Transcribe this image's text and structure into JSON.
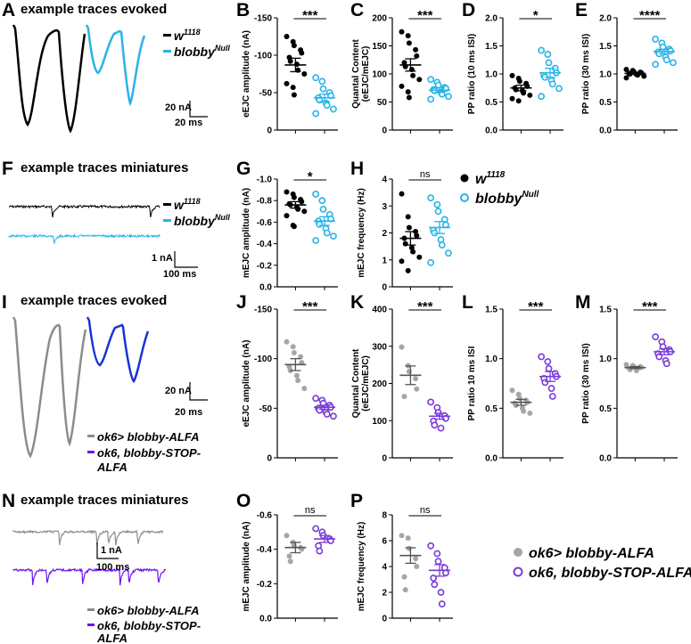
{
  "colors": {
    "ctrl1": "#000000",
    "mut1": "#29b3e6",
    "ctrl2": "#8c8c8c",
    "mut2": "#7a3bd9",
    "trace2": "#1c32d6",
    "mini2": "#6b14f0"
  },
  "panels": {
    "A": {
      "label": "A",
      "title": "example traces evoked",
      "scale_y": "20 nA",
      "scale_x": "20 ms",
      "legend": [
        {
          "base": "w",
          "sup": "1118"
        },
        {
          "base": "blobby",
          "sup": "Null"
        }
      ]
    },
    "F": {
      "label": "F",
      "title": "example traces miniatures",
      "scale_y": "1 nA",
      "scale_x": "100 ms",
      "legend": [
        {
          "base": "w",
          "sup": "1118"
        },
        {
          "base": "blobby",
          "sup": "Null"
        }
      ]
    },
    "I": {
      "label": "I",
      "title": "example traces evoked",
      "scale_y": "20 nA",
      "scale_x": "20 ms",
      "legend": [
        "ok6> blobby-ALFA",
        "ok6, blobby-STOP-",
        "ALFA"
      ]
    },
    "N": {
      "label": "N",
      "title": "example traces miniatures",
      "scale_y": "1 nA",
      "scale_x": "100 ms",
      "legend": [
        "ok6> blobby-ALFA",
        "ok6, blobby-STOP-",
        "ALFA"
      ]
    }
  },
  "legend_row1": [
    {
      "base": "w",
      "sup": "1118"
    },
    {
      "base": "blobby",
      "sup": "Null"
    }
  ],
  "legend_row4": [
    "ok6> blobby-ALFA",
    "ok6, blobby-STOP-ALFA"
  ],
  "chart_data": [
    {
      "id": "B",
      "type": "scatter",
      "ylabel": "eEJC amplitude (nA)",
      "ylim": [
        0,
        -150
      ],
      "yticks": [
        "0",
        "-50",
        "-100",
        "-150"
      ],
      "sig": "***",
      "series": [
        {
          "name": "w1118",
          "mean": -87,
          "sem": 9,
          "values": [
            -125,
            -118,
            -113,
            -107,
            -103,
            -97,
            -92,
            -88,
            -80,
            -75,
            -62,
            -57,
            -47
          ]
        },
        {
          "name": "blobbyNull",
          "mean": -43,
          "sem": 5,
          "values": [
            -70,
            -65,
            -55,
            -50,
            -46,
            -43,
            -40,
            -36,
            -33,
            -28,
            -22
          ]
        }
      ]
    },
    {
      "id": "C",
      "type": "scatter",
      "ylabel": "Quantal Content (eEJC/mEJC)",
      "ylim": [
        0,
        200
      ],
      "yticks": [
        "0",
        "50",
        "100",
        "150",
        "200"
      ],
      "sig": "***",
      "series": [
        {
          "name": "w1118",
          "mean": 116,
          "sem": 11,
          "values": [
            175,
            168,
            155,
            143,
            132,
            120,
            113,
            108,
            97,
            90,
            78,
            68,
            58
          ]
        },
        {
          "name": "blobbyNull",
          "mean": 71,
          "sem": 4,
          "values": [
            90,
            85,
            80,
            76,
            74,
            72,
            70,
            67,
            64,
            60,
            55
          ]
        }
      ]
    },
    {
      "id": "D",
      "type": "scatter",
      "ylabel": "PP ratio (10 ms ISI)",
      "ylim": [
        0,
        2.0
      ],
      "yticks": [
        "0.0",
        "0.5",
        "1.0",
        "1.5",
        "2.0"
      ],
      "sig": "*",
      "series": [
        {
          "name": "w1118",
          "mean": 0.75,
          "sem": 0.05,
          "values": [
            0.97,
            0.92,
            0.87,
            0.83,
            0.78,
            0.75,
            0.72,
            0.7,
            0.66,
            0.62,
            0.56,
            0.52
          ]
        },
        {
          "name": "blobbyNull",
          "mean": 1.02,
          "sem": 0.08,
          "values": [
            1.42,
            1.35,
            1.2,
            1.1,
            1.02,
            0.97,
            0.94,
            0.88,
            0.82,
            0.74,
            0.6
          ]
        }
      ]
    },
    {
      "id": "E",
      "type": "scatter",
      "ylabel": "PP ratio (30 ms ISI)",
      "ylim": [
        0,
        2.0
      ],
      "yticks": [
        "0.0",
        "0.5",
        "1.0",
        "1.5",
        "2.0"
      ],
      "sig": "****",
      "series": [
        {
          "name": "w1118",
          "mean": 1.01,
          "sem": 0.02,
          "values": [
            1.08,
            1.06,
            1.04,
            1.03,
            1.02,
            1.01,
            1.0,
            0.99,
            0.98,
            0.96,
            0.93
          ]
        },
        {
          "name": "blobbyNull",
          "mean": 1.4,
          "sem": 0.04,
          "values": [
            1.62,
            1.55,
            1.48,
            1.44,
            1.41,
            1.39,
            1.36,
            1.3,
            1.25,
            1.2,
            1.17
          ]
        }
      ]
    },
    {
      "id": "G",
      "type": "scatter",
      "ylabel": "mEJC amplitude (nA)",
      "ylim": [
        0,
        -1.0
      ],
      "yticks": [
        "0.0",
        "-0.2",
        "-0.4",
        "-0.6",
        "-0.8",
        "-1.0"
      ],
      "sig": "*",
      "series": [
        {
          "name": "w1118",
          "mean": -0.76,
          "sem": 0.03,
          "values": [
            -0.88,
            -0.86,
            -0.83,
            -0.81,
            -0.79,
            -0.77,
            -0.76,
            -0.74,
            -0.72,
            -0.7,
            -0.66,
            -0.57,
            -0.56
          ]
        },
        {
          "name": "blobbyNull",
          "mean": -0.61,
          "sem": 0.04,
          "values": [
            -0.86,
            -0.8,
            -0.72,
            -0.67,
            -0.63,
            -0.61,
            -0.58,
            -0.54,
            -0.5,
            -0.47,
            -0.43
          ]
        }
      ]
    },
    {
      "id": "H",
      "type": "scatter",
      "ylabel": "mEJC frequency (Hz)",
      "ylim": [
        0,
        4
      ],
      "yticks": [
        "0",
        "1",
        "2",
        "3",
        "4"
      ],
      "sig": "ns",
      "series": [
        {
          "name": "w1118",
          "mean": 1.8,
          "sem": 0.25,
          "values": [
            3.45,
            2.6,
            2.2,
            2.05,
            1.9,
            1.8,
            1.6,
            1.45,
            1.3,
            1.1,
            0.95,
            0.6
          ]
        },
        {
          "name": "blobbyNull",
          "mean": 2.2,
          "sem": 0.22,
          "values": [
            3.3,
            3.05,
            2.8,
            2.5,
            2.3,
            2.1,
            2.0,
            1.75,
            1.55,
            1.25,
            0.9
          ]
        }
      ]
    },
    {
      "id": "J",
      "type": "scatter",
      "ylabel": "eEJC amplitude (nA)",
      "ylim": [
        0,
        -150
      ],
      "yticks": [
        "0",
        "-50",
        "-100",
        "-150"
      ],
      "sig": "***",
      "series": [
        {
          "name": "ok6> blobby-ALFA",
          "mean": -94,
          "sem": 6,
          "values": [
            -117,
            -112,
            -106,
            -102,
            -96,
            -92,
            -88,
            -83,
            -78,
            -70
          ]
        },
        {
          "name": "ok6, blobby-STOP-ALFA",
          "mean": -51,
          "sem": 2,
          "values": [
            -60,
            -58,
            -55,
            -53,
            -51,
            -50,
            -48,
            -46,
            -44,
            -42
          ]
        }
      ]
    },
    {
      "id": "K",
      "type": "scatter",
      "ylabel": "Quantal Content (eEJC/mEJC)",
      "ylim": [
        0,
        400
      ],
      "yticks": [
        "0",
        "100",
        "200",
        "300",
        "400"
      ],
      "sig": "***",
      "series": [
        {
          "name": "ok6> blobby-ALFA",
          "mean": 222,
          "sem": 25,
          "values": [
            298,
            248,
            232,
            213,
            185,
            165
          ]
        },
        {
          "name": "ok6, blobby-STOP-ALFA",
          "mean": 112,
          "sem": 8,
          "values": [
            150,
            135,
            122,
            113,
            106,
            99,
            88,
            80
          ]
        }
      ]
    },
    {
      "id": "L",
      "type": "scatter",
      "ylabel": "PP ratio 10 ms ISI",
      "ylim": [
        0,
        1.5
      ],
      "yticks": [
        "0.0",
        "0.5",
        "1.0",
        "1.5"
      ],
      "sig": "***",
      "series": [
        {
          "name": "ok6> blobby-ALFA",
          "mean": 0.56,
          "sem": 0.03,
          "values": [
            0.68,
            0.64,
            0.6,
            0.58,
            0.56,
            0.55,
            0.53,
            0.5,
            0.47,
            0.45
          ]
        },
        {
          "name": "ok6, blobby-STOP-ALFA",
          "mean": 0.82,
          "sem": 0.05,
          "values": [
            1.02,
            0.97,
            0.9,
            0.85,
            0.82,
            0.8,
            0.76,
            0.7,
            0.62
          ]
        }
      ]
    },
    {
      "id": "M",
      "type": "scatter",
      "ylabel": "PP ratio (30 ms ISI)",
      "ylim": [
        0,
        1.5
      ],
      "yticks": [
        "0.0",
        "0.5",
        "1.0",
        "1.5"
      ],
      "sig": "***",
      "series": [
        {
          "name": "ok6> blobby-ALFA",
          "mean": 0.91,
          "sem": 0.01,
          "values": [
            0.94,
            0.93,
            0.92,
            0.92,
            0.91,
            0.9,
            0.89,
            0.88
          ]
        },
        {
          "name": "ok6, blobby-STOP-ALFA",
          "mean": 1.07,
          "sem": 0.03,
          "values": [
            1.22,
            1.17,
            1.12,
            1.09,
            1.07,
            1.05,
            1.02,
            0.98,
            0.95
          ]
        }
      ]
    },
    {
      "id": "O",
      "type": "scatter",
      "ylabel": "mEJC amplitude (nA)",
      "ylim": [
        0,
        -0.6
      ],
      "yticks": [
        "0.0",
        "-0.2",
        "-0.4",
        "-0.6"
      ],
      "sig": "ns",
      "series": [
        {
          "name": "ok6> blobby-ALFA",
          "mean": -0.41,
          "sem": 0.03,
          "values": [
            -0.48,
            -0.44,
            -0.42,
            -0.41,
            -0.4,
            -0.36,
            -0.33
          ]
        },
        {
          "name": "ok6, blobby-STOP-ALFA",
          "mean": -0.46,
          "sem": 0.02,
          "values": [
            -0.52,
            -0.5,
            -0.48,
            -0.46,
            -0.45,
            -0.42,
            -0.39
          ]
        }
      ]
    },
    {
      "id": "P",
      "type": "scatter",
      "ylabel": "mEJC frequency (Hz)",
      "ylim": [
        0,
        8
      ],
      "yticks": [
        "0",
        "2",
        "4",
        "6",
        "8"
      ],
      "sig": "ns",
      "series": [
        {
          "name": "ok6> blobby-ALFA",
          "mean": 4.85,
          "sem": 0.6,
          "values": [
            6.4,
            6.2,
            5.4,
            4.6,
            4.0,
            3.2,
            2.2
          ]
        },
        {
          "name": "ok6, blobby-STOP-ALFA",
          "mean": 3.7,
          "sem": 0.45,
          "values": [
            5.6,
            5.0,
            4.4,
            3.9,
            3.5,
            3.1,
            2.6,
            2.0,
            1.1
          ]
        }
      ]
    }
  ]
}
